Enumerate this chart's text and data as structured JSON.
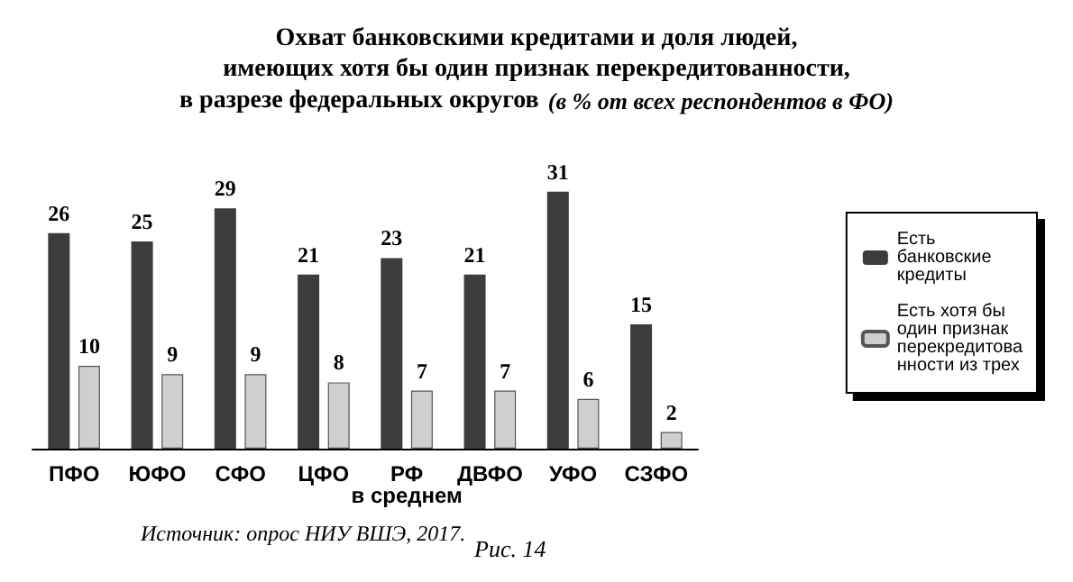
{
  "chart_data": {
    "type": "bar",
    "title": "Охват банковскими кредитами и доля людей,\nимеющих хотя бы один признак перекредитованности,\nв разрезе федеральных округов",
    "subtitle": "(в % от всех респондентов в ФО)",
    "categories": [
      "ПФО",
      "ЮФО",
      "СФО",
      "ЦФО",
      "РФ\nв среднем",
      "ДВФО",
      "УФО",
      "СЗФО"
    ],
    "series": [
      {
        "name": "Есть банковские кредиты",
        "color": "#3c3c3c",
        "values": [
          26,
          25,
          29,
          21,
          23,
          21,
          31,
          15
        ]
      },
      {
        "name": "Есть хотя бы один признак перекредитованности из трех",
        "color": "#cfcfcf",
        "values": [
          10,
          9,
          9,
          8,
          7,
          7,
          6,
          2
        ]
      }
    ],
    "data_labels": true,
    "legend": "right",
    "annotations": [
      "Источник: опрос НИУ ВШЭ, 2017.",
      "Рис. 14"
    ]
  }
}
